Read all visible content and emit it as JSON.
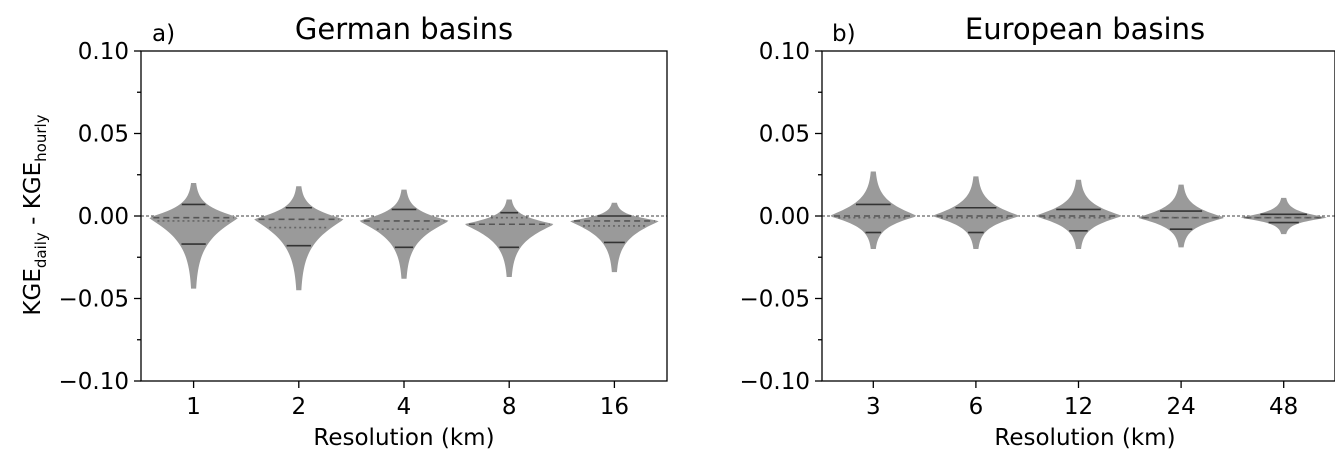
{
  "figure": {
    "ylabel_main": "KGE",
    "ylabel_sub1": "daily",
    "ylabel_sep": " - KGE",
    "ylabel_sub2": "hourly"
  },
  "chart_data": [
    {
      "type": "violin",
      "panel_label": "a)",
      "title": "German basins",
      "xlabel": "Resolution (km)",
      "ylabel": "KGE daily - KGE hourly",
      "ylim": [
        -0.1,
        0.1
      ],
      "yticks": [
        "0.10",
        "0.05",
        "0.00",
        "−0.05",
        "−0.10"
      ],
      "ytick_values": [
        0.1,
        0.05,
        0.0,
        -0.05,
        -0.1
      ],
      "categories": [
        "1",
        "2",
        "4",
        "8",
        "16"
      ],
      "violins": [
        {
          "max": 0.02,
          "q_upper": 0.007,
          "median": -0.001,
          "mean": -0.003,
          "q_lower": -0.017,
          "min": -0.044
        },
        {
          "max": 0.018,
          "q_upper": 0.005,
          "median": -0.002,
          "mean": -0.007,
          "q_lower": -0.018,
          "min": -0.045
        },
        {
          "max": 0.016,
          "q_upper": 0.004,
          "median": -0.003,
          "mean": -0.008,
          "q_lower": -0.019,
          "min": -0.038
        },
        {
          "max": 0.01,
          "q_upper": 0.002,
          "median": -0.005,
          "mean": -0.001,
          "q_lower": -0.019,
          "min": -0.037
        },
        {
          "max": 0.008,
          "q_upper": 0.0,
          "median": -0.003,
          "mean": -0.006,
          "q_lower": -0.016,
          "min": -0.034
        }
      ]
    },
    {
      "type": "violin",
      "panel_label": "b)",
      "title": "European basins",
      "xlabel": "Resolution (km)",
      "ylim": [
        -0.1,
        0.1
      ],
      "yticks": [
        "0.10",
        "0.05",
        "0.00",
        "−0.05",
        "−0.10"
      ],
      "ytick_values": [
        0.1,
        0.05,
        0.0,
        -0.05,
        -0.1
      ],
      "categories": [
        "3",
        "6",
        "12",
        "24",
        "48"
      ],
      "violins": [
        {
          "max": 0.027,
          "q_upper": 0.007,
          "median": 0.0,
          "mean": -0.001,
          "q_lower": -0.01,
          "min": -0.02
        },
        {
          "max": 0.024,
          "q_upper": 0.005,
          "median": 0.0,
          "mean": -0.001,
          "q_lower": -0.01,
          "min": -0.02
        },
        {
          "max": 0.022,
          "q_upper": 0.004,
          "median": 0.0,
          "mean": -0.001,
          "q_lower": -0.009,
          "min": -0.02
        },
        {
          "max": 0.019,
          "q_upper": 0.003,
          "median": -0.001,
          "mean": -0.001,
          "q_lower": -0.008,
          "min": -0.019
        },
        {
          "max": 0.011,
          "q_upper": 0.001,
          "median": -0.001,
          "mean": -0.001,
          "q_lower": -0.004,
          "min": -0.011
        }
      ]
    }
  ]
}
